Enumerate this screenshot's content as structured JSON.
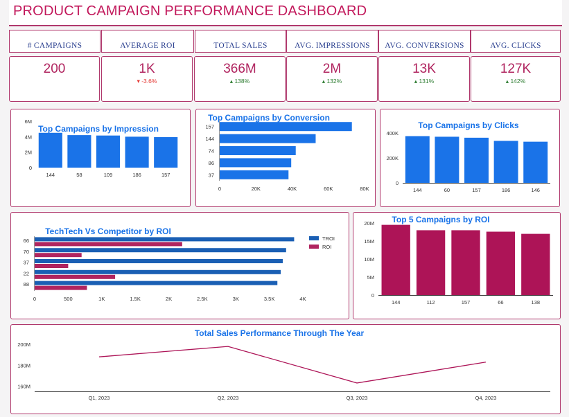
{
  "header": {
    "title": "PRODUCT CAMPAIGN PERFORMANCE DASHBOARD"
  },
  "kpis": [
    {
      "label": "# CAMPAIGNS",
      "value": "200",
      "delta": ""
    },
    {
      "label": "AVERAGE ROI",
      "value": "1K",
      "delta": "-3.6%",
      "direction": "down"
    },
    {
      "label": "TOTAL SALES",
      "value": "366M",
      "delta": "138%",
      "direction": "up"
    },
    {
      "label": "AVG. IMPRESSIONS",
      "value": "2M",
      "delta": "132%",
      "direction": "up"
    },
    {
      "label": "AVG. CONVERSIONS",
      "value": "13K",
      "delta": "131%",
      "direction": "up"
    },
    {
      "label": "AVG. CLICKS",
      "value": "127K",
      "delta": "142%",
      "direction": "up"
    }
  ],
  "chart_data": [
    {
      "id": "impression",
      "type": "bar",
      "title": "Top Campaigns by Impression",
      "categories": [
        "144",
        "58",
        "109",
        "186",
        "157"
      ],
      "values": [
        4500000,
        4200000,
        4150000,
        4000000,
        3950000
      ],
      "ylim": [
        0,
        6000000
      ],
      "yticks": [
        {
          "v": 0,
          "label": "0"
        },
        {
          "v": 2000000,
          "label": "2M"
        },
        {
          "v": 4000000,
          "label": "4M"
        },
        {
          "v": 6000000,
          "label": "6M"
        }
      ],
      "color": "#1a73e8"
    },
    {
      "id": "conversion",
      "type": "bar",
      "orientation": "horizontal",
      "title": "Top Campaigns by Conversion",
      "categories": [
        "157",
        "144",
        "74",
        "86",
        "37"
      ],
      "values": [
        73000,
        53000,
        42000,
        39500,
        38000
      ],
      "xlim": [
        0,
        80000
      ],
      "xticks": [
        {
          "v": 0,
          "label": "0"
        },
        {
          "v": 20000,
          "label": "20K"
        },
        {
          "v": 40000,
          "label": "40K"
        },
        {
          "v": 60000,
          "label": "60K"
        },
        {
          "v": 80000,
          "label": "80K"
        }
      ],
      "color": "#1a73e8"
    },
    {
      "id": "clicks",
      "type": "bar",
      "title": "Top Campaigns by Clicks",
      "categories": [
        "144",
        "60",
        "157",
        "186",
        "146"
      ],
      "values": [
        375000,
        370000,
        362000,
        337000,
        330000
      ],
      "ylim": [
        0,
        400000
      ],
      "yticks": [
        {
          "v": 0,
          "label": "0"
        },
        {
          "v": 200000,
          "label": "200K"
        },
        {
          "v": 400000,
          "label": "400K"
        }
      ],
      "color": "#1a73e8"
    },
    {
      "id": "competitor",
      "type": "bar",
      "orientation": "horizontal",
      "title": "TechTech Vs Competitor by  ROI",
      "categories": [
        "66",
        "70",
        "37",
        "22",
        "88"
      ],
      "series": [
        {
          "name": "TROI",
          "values": [
            3870,
            3750,
            3700,
            3670,
            3620
          ],
          "color": "#1a5fb4"
        },
        {
          "name": "ROI",
          "values": [
            2200,
            700,
            500,
            1200,
            780
          ],
          "color": "#b0245f"
        }
      ],
      "xlim": [
        0,
        4000
      ],
      "xticks": [
        {
          "v": 0,
          "label": "0"
        },
        {
          "v": 500,
          "label": "500"
        },
        {
          "v": 1000,
          "label": "1K"
        },
        {
          "v": 1500,
          "label": "1.5K"
        },
        {
          "v": 2000,
          "label": "2K"
        },
        {
          "v": 2500,
          "label": "2.5K"
        },
        {
          "v": 3000,
          "label": "3K"
        },
        {
          "v": 3500,
          "label": "3.5K"
        },
        {
          "v": 4000,
          "label": "4K"
        }
      ],
      "legend": "top-right"
    },
    {
      "id": "roi",
      "type": "bar",
      "title": "Top 5 Campaigns by ROI",
      "categories": [
        "144",
        "112",
        "157",
        "66",
        "138"
      ],
      "values": [
        19500000,
        18000000,
        18000000,
        17600000,
        17000000
      ],
      "ylim": [
        0,
        20000000
      ],
      "yticks": [
        {
          "v": 0,
          "label": "0"
        },
        {
          "v": 5000000,
          "label": "5M"
        },
        {
          "v": 10000000,
          "label": "10M"
        },
        {
          "v": 15000000,
          "label": "15M"
        },
        {
          "v": 20000000,
          "label": "20M"
        }
      ],
      "color": "#ad1457"
    },
    {
      "id": "sales",
      "type": "line",
      "title": "Total Sales Performance Through The Year",
      "x": [
        "Q1, 2023",
        "Q2, 2023",
        "Q3, 2023",
        "Q4, 2023"
      ],
      "values": [
        188000000,
        198000000,
        163000000,
        183000000
      ],
      "ylim": [
        155000000,
        210000000
      ],
      "yticks": [
        {
          "v": 160000000,
          "label": "160M"
        },
        {
          "v": 180000000,
          "label": "180M"
        },
        {
          "v": 200000000,
          "label": "200M"
        }
      ],
      "color": "#ad1457"
    }
  ]
}
